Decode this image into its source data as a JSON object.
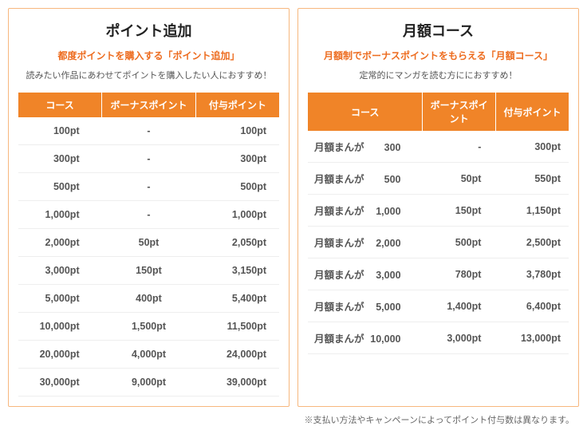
{
  "theme": {
    "accent": "#f08428",
    "subtitle_color": "#ed6c1f",
    "card_border": "#f7b77e",
    "row_border": "#eeeeee",
    "text": "#333333",
    "cell_text": "#555555"
  },
  "left": {
    "title": "ポイント追加",
    "subtitle": "都度ポイントを購入する「ポイント追加」",
    "desc": "読みたい作品にあわせてポイントを購入したい人におすすめ！",
    "headers": [
      "コース",
      "ボーナスポイント",
      "付与ポイント"
    ],
    "rows": [
      {
        "course": "100pt",
        "bonus": "-",
        "grant": "100pt"
      },
      {
        "course": "300pt",
        "bonus": "-",
        "grant": "300pt"
      },
      {
        "course": "500pt",
        "bonus": "-",
        "grant": "500pt"
      },
      {
        "course": "1,000pt",
        "bonus": "-",
        "grant": "1,000pt"
      },
      {
        "course": "2,000pt",
        "bonus": "50pt",
        "grant": "2,050pt"
      },
      {
        "course": "3,000pt",
        "bonus": "150pt",
        "grant": "3,150pt"
      },
      {
        "course": "5,000pt",
        "bonus": "400pt",
        "grant": "5,400pt"
      },
      {
        "course": "10,000pt",
        "bonus": "1,500pt",
        "grant": "11,500pt"
      },
      {
        "course": "20,000pt",
        "bonus": "4,000pt",
        "grant": "24,000pt"
      },
      {
        "course": "30,000pt",
        "bonus": "9,000pt",
        "grant": "39,000pt"
      }
    ]
  },
  "right": {
    "title": "月額コース",
    "subtitle": "月額制でボーナスポイントをもらえる「月額コース」",
    "desc": "定常的にマンガを読む方ににおすすめ！",
    "headers": [
      "コース",
      "ボーナスポイント",
      "付与ポイント"
    ],
    "course_prefix": "月額まんが",
    "rows": [
      {
        "course_num": "300",
        "bonus": "-",
        "grant": "300pt"
      },
      {
        "course_num": "500",
        "bonus": "50pt",
        "grant": "550pt"
      },
      {
        "course_num": "1,000",
        "bonus": "150pt",
        "grant": "1,150pt"
      },
      {
        "course_num": "2,000",
        "bonus": "500pt",
        "grant": "2,500pt"
      },
      {
        "course_num": "3,000",
        "bonus": "780pt",
        "grant": "3,780pt"
      },
      {
        "course_num": "5,000",
        "bonus": "1,400pt",
        "grant": "6,400pt"
      },
      {
        "course_num": "10,000",
        "bonus": "3,000pt",
        "grant": "13,000pt"
      }
    ]
  },
  "footnote": "※支払い方法やキャンペーンによってポイント付与数は異なります。"
}
